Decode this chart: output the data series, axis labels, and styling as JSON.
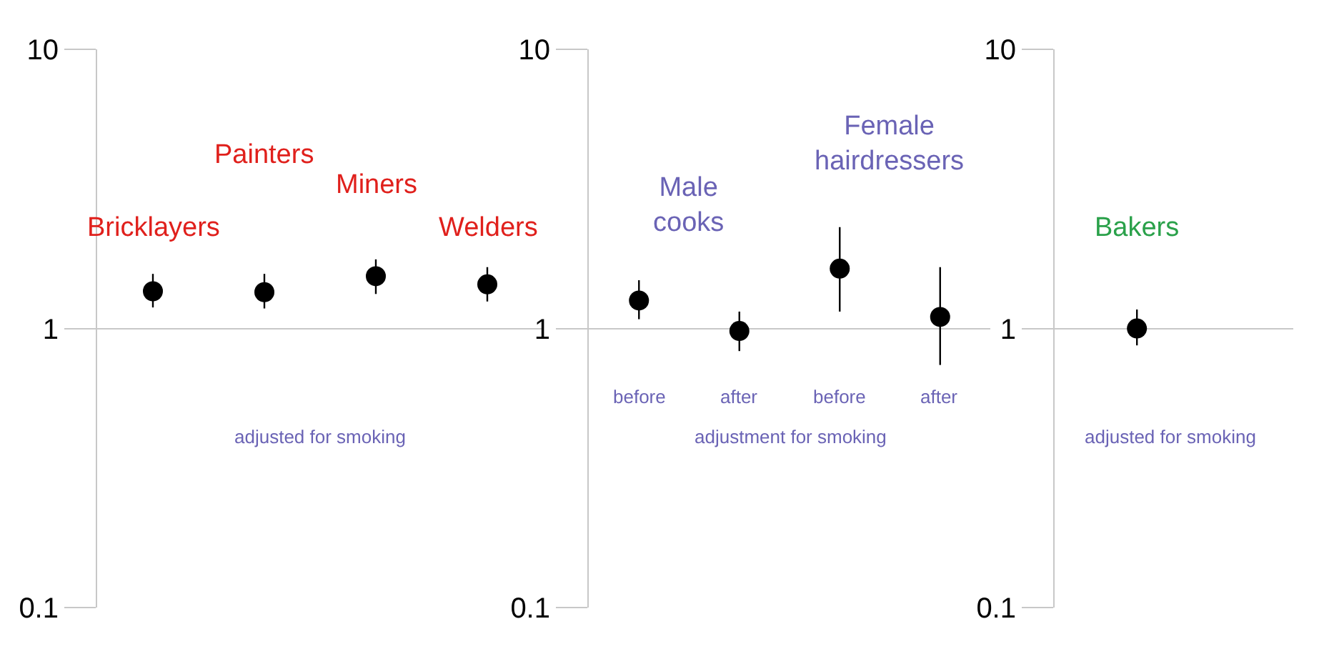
{
  "chart_data": [
    {
      "type": "scatter",
      "categories": [
        null,
        null,
        null,
        null
      ],
      "values": [
        1.36,
        1.35,
        1.54,
        1.44
      ],
      "errors": [
        [
          1.19,
          1.57
        ],
        [
          1.18,
          1.57
        ],
        [
          1.33,
          1.77
        ],
        [
          1.25,
          1.66
        ]
      ],
      "color": "#000000",
      "marker": "circle",
      "log": "y",
      "ylim": [
        0.1,
        10
      ],
      "yticks": [
        0.1,
        1,
        10
      ],
      "grid": "y",
      "annotations": [
        "Bricklayers",
        "Painters",
        "Miners",
        "Welders",
        "adjusted for smoking"
      ]
    },
    {
      "type": "scatter",
      "categories": [
        "before",
        "after",
        "before",
        "after"
      ],
      "values": [
        1.26,
        0.98,
        1.64,
        1.1
      ],
      "errors": [
        [
          1.08,
          1.49
        ],
        [
          0.83,
          1.15
        ],
        [
          1.15,
          2.31
        ],
        [
          0.74,
          1.66
        ]
      ],
      "color": "#000000",
      "marker": "circle",
      "log": "y",
      "ylim": [
        0.1,
        10
      ],
      "yticks": [
        0.1,
        1,
        10
      ],
      "grid": "y",
      "annotations": [
        "Male\ncooks",
        "Female\nhairdressers",
        "adjustment for smoking"
      ]
    },
    {
      "type": "scatter",
      "categories": [
        null
      ],
      "values": [
        1.0
      ],
      "errors": [
        [
          0.87,
          1.17
        ]
      ],
      "color": "#000000",
      "marker": "circle",
      "log": "y",
      "ylim": [
        0.1,
        10
      ],
      "yticks": [
        0.1,
        1,
        10
      ],
      "grid": "y",
      "annotations": [
        "Bakers",
        "adjusted for smoking"
      ]
    }
  ]
}
